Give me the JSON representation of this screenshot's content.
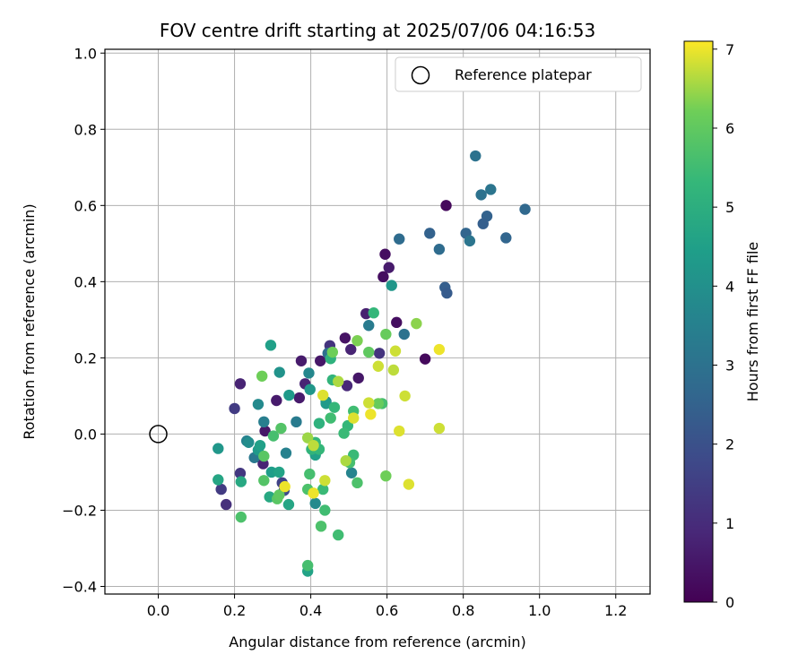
{
  "chart_data": {
    "type": "scatter",
    "title": "FOV centre drift starting at 2025/07/06 04:16:53",
    "xlabel": "Angular distance from reference (arcmin)",
    "ylabel": "Rotation from reference (arcmin)",
    "xlim": [
      -0.14,
      1.29
    ],
    "ylim": [
      -0.42,
      1.01
    ],
    "xticks": [
      0.0,
      0.2,
      0.4,
      0.6,
      0.8,
      1.0,
      1.2
    ],
    "yticks": [
      -0.4,
      -0.2,
      0.0,
      0.2,
      0.4,
      0.6,
      0.8,
      1.0
    ],
    "xtick_labels": [
      "0.0",
      "0.2",
      "0.4",
      "0.6",
      "0.8",
      "1.0",
      "1.2"
    ],
    "ytick_labels": [
      "−0.4",
      "−0.2",
      "0.0",
      "0.2",
      "0.4",
      "0.6",
      "0.8",
      "1.0"
    ],
    "grid": true,
    "legend": {
      "position": "top-right",
      "entries": [
        "Reference platepar"
      ]
    },
    "reference_point": {
      "x": 0.0,
      "y": 0.0
    },
    "colorbar": {
      "label": "Hours from first FF file",
      "min": 0,
      "max": 7.1,
      "ticks": [
        0,
        1,
        2,
        3,
        4,
        5,
        6,
        7
      ],
      "tick_labels": [
        "0",
        "1",
        "2",
        "3",
        "4",
        "5",
        "6",
        "7"
      ],
      "colormap": "viridis"
    },
    "points": [
      {
        "x": 0.755,
        "y": 0.6,
        "h": 0.2
      },
      {
        "x": 0.595,
        "y": 0.472,
        "h": 0.3
      },
      {
        "x": 0.605,
        "y": 0.437,
        "h": 0.6
      },
      {
        "x": 0.59,
        "y": 0.413,
        "h": 0.3
      },
      {
        "x": 0.625,
        "y": 0.293,
        "h": 0.3
      },
      {
        "x": 0.545,
        "y": 0.316,
        "h": 0.7
      },
      {
        "x": 0.49,
        "y": 0.252,
        "h": 0.4
      },
      {
        "x": 0.45,
        "y": 0.232,
        "h": 1.2
      },
      {
        "x": 0.505,
        "y": 0.222,
        "h": 0.8
      },
      {
        "x": 0.58,
        "y": 0.212,
        "h": 1.2
      },
      {
        "x": 0.425,
        "y": 0.192,
        "h": 0.5
      },
      {
        "x": 0.375,
        "y": 0.192,
        "h": 0.6
      },
      {
        "x": 0.7,
        "y": 0.197,
        "h": 0.2
      },
      {
        "x": 0.525,
        "y": 0.147,
        "h": 0.5
      },
      {
        "x": 0.495,
        "y": 0.127,
        "h": 0.9
      },
      {
        "x": 0.385,
        "y": 0.132,
        "h": 0.8
      },
      {
        "x": 0.215,
        "y": 0.132,
        "h": 0.8
      },
      {
        "x": 0.31,
        "y": 0.088,
        "h": 0.6
      },
      {
        "x": 0.37,
        "y": 0.095,
        "h": 0.6
      },
      {
        "x": 0.2,
        "y": 0.067,
        "h": 1.4
      },
      {
        "x": 0.28,
        "y": 0.008,
        "h": 0.5
      },
      {
        "x": 0.265,
        "y": -0.06,
        "h": 1.1
      },
      {
        "x": 0.275,
        "y": -0.078,
        "h": 0.8
      },
      {
        "x": 0.215,
        "y": -0.103,
        "h": 1.3
      },
      {
        "x": 0.165,
        "y": -0.145,
        "h": 1.4
      },
      {
        "x": 0.178,
        "y": -0.185,
        "h": 1.1
      },
      {
        "x": 0.325,
        "y": -0.128,
        "h": 1.6
      },
      {
        "x": 0.33,
        "y": -0.148,
        "h": 1.8
      },
      {
        "x": 0.832,
        "y": 0.73,
        "h": 3.0
      },
      {
        "x": 0.872,
        "y": 0.642,
        "h": 3.1
      },
      {
        "x": 0.847,
        "y": 0.628,
        "h": 3.0
      },
      {
        "x": 0.962,
        "y": 0.59,
        "h": 2.7
      },
      {
        "x": 0.862,
        "y": 0.572,
        "h": 2.5
      },
      {
        "x": 0.852,
        "y": 0.552,
        "h": 2.4
      },
      {
        "x": 0.712,
        "y": 0.527,
        "h": 2.5
      },
      {
        "x": 0.807,
        "y": 0.527,
        "h": 2.6
      },
      {
        "x": 0.817,
        "y": 0.507,
        "h": 3.1
      },
      {
        "x": 0.912,
        "y": 0.515,
        "h": 2.6
      },
      {
        "x": 0.632,
        "y": 0.512,
        "h": 2.8
      },
      {
        "x": 0.737,
        "y": 0.485,
        "h": 2.8
      },
      {
        "x": 0.752,
        "y": 0.385,
        "h": 2.4
      },
      {
        "x": 0.757,
        "y": 0.37,
        "h": 2.3
      },
      {
        "x": 0.612,
        "y": 0.39,
        "h": 4.2
      },
      {
        "x": 0.645,
        "y": 0.262,
        "h": 3.0
      },
      {
        "x": 0.552,
        "y": 0.285,
        "h": 3.3
      },
      {
        "x": 0.445,
        "y": 0.212,
        "h": 2.9
      },
      {
        "x": 0.395,
        "y": 0.16,
        "h": 3.7
      },
      {
        "x": 0.44,
        "y": 0.085,
        "h": 3.6
      },
      {
        "x": 0.362,
        "y": 0.032,
        "h": 3.3
      },
      {
        "x": 0.262,
        "y": 0.078,
        "h": 3.8
      },
      {
        "x": 0.277,
        "y": 0.032,
        "h": 3.4
      },
      {
        "x": 0.335,
        "y": -0.05,
        "h": 3.5
      },
      {
        "x": 0.507,
        "y": -0.102,
        "h": 3.6
      },
      {
        "x": 0.412,
        "y": -0.182,
        "h": 3.8
      },
      {
        "x": 0.252,
        "y": -0.062,
        "h": 3.2
      },
      {
        "x": 0.232,
        "y": -0.018,
        "h": 3.5
      },
      {
        "x": 0.237,
        "y": -0.022,
        "h": 3.9
      },
      {
        "x": 0.318,
        "y": 0.162,
        "h": 4.1
      },
      {
        "x": 0.343,
        "y": 0.102,
        "h": 4.3
      },
      {
        "x": 0.398,
        "y": 0.117,
        "h": 4.2
      },
      {
        "x": 0.44,
        "y": 0.08,
        "h": 4.3
      },
      {
        "x": 0.295,
        "y": 0.233,
        "h": 4.5
      },
      {
        "x": 0.157,
        "y": -0.038,
        "h": 4.2
      },
      {
        "x": 0.262,
        "y": -0.042,
        "h": 4.3
      },
      {
        "x": 0.267,
        "y": -0.03,
        "h": 4.5
      },
      {
        "x": 0.297,
        "y": -0.1,
        "h": 4.4
      },
      {
        "x": 0.317,
        "y": -0.1,
        "h": 4.6
      },
      {
        "x": 0.157,
        "y": -0.12,
        "h": 4.7
      },
      {
        "x": 0.217,
        "y": -0.125,
        "h": 4.8
      },
      {
        "x": 0.292,
        "y": -0.165,
        "h": 4.8
      },
      {
        "x": 0.342,
        "y": -0.185,
        "h": 4.7
      },
      {
        "x": 0.412,
        "y": -0.055,
        "h": 4.5
      },
      {
        "x": 0.392,
        "y": -0.36,
        "h": 4.6
      },
      {
        "x": 0.565,
        "y": 0.318,
        "h": 5.3
      },
      {
        "x": 0.452,
        "y": 0.198,
        "h": 5.1
      },
      {
        "x": 0.457,
        "y": 0.142,
        "h": 5.2
      },
      {
        "x": 0.452,
        "y": 0.042,
        "h": 5.5
      },
      {
        "x": 0.462,
        "y": 0.07,
        "h": 5.3
      },
      {
        "x": 0.422,
        "y": 0.028,
        "h": 5.1
      },
      {
        "x": 0.497,
        "y": 0.022,
        "h": 5.3
      },
      {
        "x": 0.487,
        "y": 0.002,
        "h": 5.4
      },
      {
        "x": 0.412,
        "y": -0.022,
        "h": 5.3
      },
      {
        "x": 0.402,
        "y": -0.04,
        "h": 5.2
      },
      {
        "x": 0.422,
        "y": -0.04,
        "h": 5.3
      },
      {
        "x": 0.512,
        "y": 0.06,
        "h": 5.5
      },
      {
        "x": 0.512,
        "y": -0.055,
        "h": 5.4
      },
      {
        "x": 0.502,
        "y": -0.075,
        "h": 5.6
      },
      {
        "x": 0.522,
        "y": -0.128,
        "h": 5.7
      },
      {
        "x": 0.397,
        "y": -0.105,
        "h": 5.6
      },
      {
        "x": 0.437,
        "y": -0.2,
        "h": 5.5
      },
      {
        "x": 0.432,
        "y": -0.145,
        "h": 5.4
      },
      {
        "x": 0.472,
        "y": -0.265,
        "h": 5.5
      },
      {
        "x": 0.427,
        "y": -0.242,
        "h": 5.7
      },
      {
        "x": 0.392,
        "y": -0.345,
        "h": 5.6
      },
      {
        "x": 0.392,
        "y": -0.145,
        "h": 5.7
      },
      {
        "x": 0.312,
        "y": -0.17,
        "h": 5.9
      },
      {
        "x": 0.317,
        "y": -0.16,
        "h": 6.0
      },
      {
        "x": 0.277,
        "y": -0.122,
        "h": 5.8
      },
      {
        "x": 0.277,
        "y": -0.058,
        "h": 5.9
      },
      {
        "x": 0.302,
        "y": -0.005,
        "h": 5.6
      },
      {
        "x": 0.322,
        "y": 0.015,
        "h": 5.8
      },
      {
        "x": 0.272,
        "y": 0.152,
        "h": 6.2
      },
      {
        "x": 0.217,
        "y": -0.218,
        "h": 5.7
      },
      {
        "x": 0.587,
        "y": 0.08,
        "h": 5.6
      },
      {
        "x": 0.577,
        "y": 0.08,
        "h": 6.1
      },
      {
        "x": 0.457,
        "y": 0.215,
        "h": 6.2
      },
      {
        "x": 0.522,
        "y": 0.245,
        "h": 6.3
      },
      {
        "x": 0.552,
        "y": 0.215,
        "h": 6.0
      },
      {
        "x": 0.597,
        "y": 0.262,
        "h": 6.1
      },
      {
        "x": 0.677,
        "y": 0.29,
        "h": 6.4
      },
      {
        "x": 0.597,
        "y": -0.11,
        "h": 6.2
      },
      {
        "x": 0.492,
        "y": -0.07,
        "h": 6.6
      },
      {
        "x": 0.472,
        "y": 0.138,
        "h": 6.6
      },
      {
        "x": 0.432,
        "y": 0.102,
        "h": 6.9
      },
      {
        "x": 0.392,
        "y": -0.01,
        "h": 6.5
      },
      {
        "x": 0.407,
        "y": -0.03,
        "h": 6.7
      },
      {
        "x": 0.512,
        "y": 0.042,
        "h": 6.9
      },
      {
        "x": 0.552,
        "y": 0.082,
        "h": 6.8
      },
      {
        "x": 0.557,
        "y": 0.052,
        "h": 7.0
      },
      {
        "x": 0.577,
        "y": 0.178,
        "h": 6.8
      },
      {
        "x": 0.622,
        "y": 0.218,
        "h": 6.8
      },
      {
        "x": 0.617,
        "y": 0.168,
        "h": 6.7
      },
      {
        "x": 0.632,
        "y": 0.008,
        "h": 6.9
      },
      {
        "x": 0.647,
        "y": 0.1,
        "h": 6.8
      },
      {
        "x": 0.657,
        "y": -0.132,
        "h": 6.9
      },
      {
        "x": 0.737,
        "y": 0.222,
        "h": 7.0
      },
      {
        "x": 0.737,
        "y": 0.015,
        "h": 6.8
      },
      {
        "x": 0.437,
        "y": -0.122,
        "h": 6.8
      },
      {
        "x": 0.407,
        "y": -0.155,
        "h": 7.0
      },
      {
        "x": 0.332,
        "y": -0.138,
        "h": 7.0
      }
    ]
  }
}
